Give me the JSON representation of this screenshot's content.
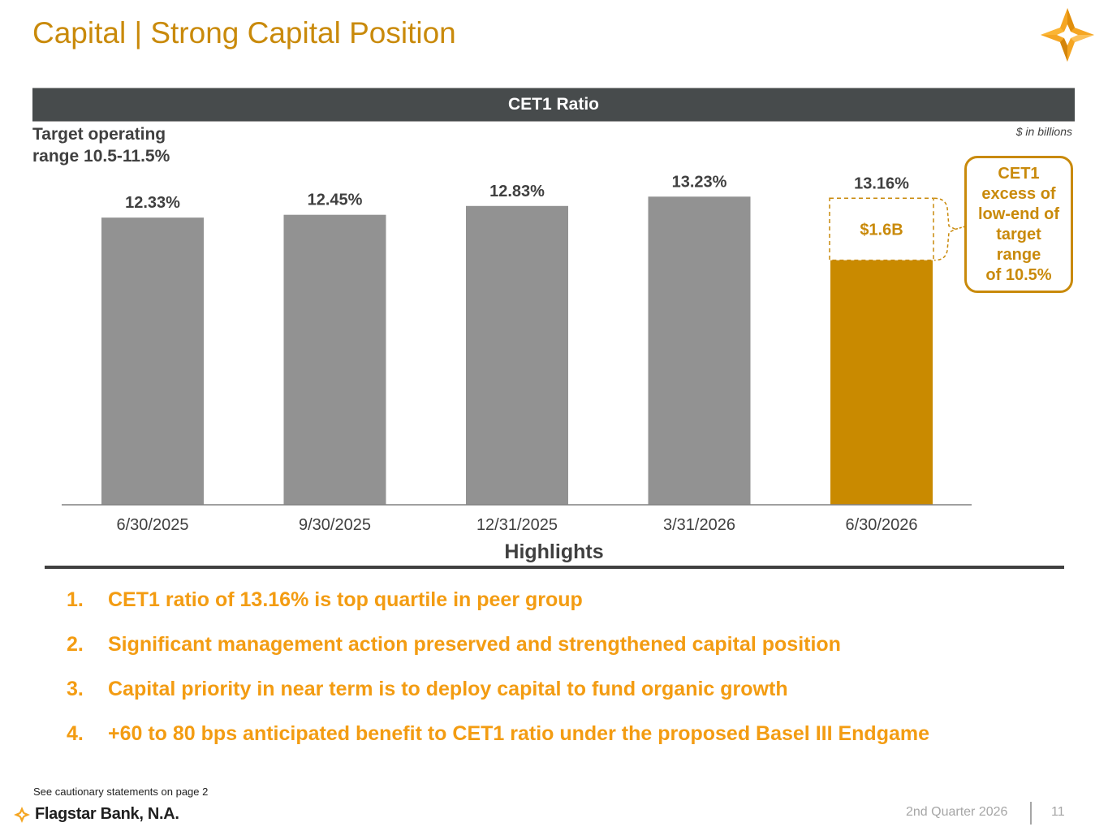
{
  "slide": {
    "title": "Capital | Strong Capital Position",
    "band_title": "CET1 Ratio",
    "target_text": "Target operating range 10.5-11.5%",
    "units_note": "$ in billions",
    "callout_text": "CET1\nexcess of\nlow-end of\ntarget\nrange\nof 10.5%",
    "highlights_title": "Highlights",
    "highlights": [
      {
        "num": "1.",
        "text": "CET1 ratio of 13.16% is top quartile in peer group"
      },
      {
        "num": "2.",
        "text": "Significant management action preserved and strengthened capital position"
      },
      {
        "num": "3.",
        "text": "Capital priority in near term is to deploy capital to fund organic growth"
      },
      {
        "num": "4.",
        "text": "+60 to 80 bps anticipated benefit to CET1 ratio under the proposed Basel III Endgame"
      }
    ],
    "footnote": "See cautionary statements on page 2",
    "brand": "Flagstar Bank, N.A.",
    "quarter": "2nd Quarter 2026",
    "page_number": "11"
  },
  "colors": {
    "accent": "#c98a0b",
    "highlight_text": "#f39c12",
    "bar_gray": "#929292",
    "bar_gold": "#c98a00",
    "band": "#474b4c"
  },
  "icons": {
    "logo": "flagstar-star-icon",
    "footer_logo": "flagstar-star-small-icon"
  },
  "chart_data": {
    "type": "bar",
    "title": "CET1 Ratio",
    "categories": [
      "6/30/2025",
      "9/30/2025",
      "12/31/2025",
      "3/31/2026",
      "6/30/2026"
    ],
    "values": [
      12.33,
      12.45,
      12.83,
      13.23,
      13.16
    ],
    "value_labels": [
      "12.33%",
      "12.45%",
      "12.83%",
      "13.23%",
      "13.16%"
    ],
    "highlight_index": 4,
    "excess_segment": {
      "bar_index": 4,
      "from": 10.5,
      "to": 13.16,
      "label": "$1.6B"
    },
    "grid": false,
    "legend": "none"
  }
}
